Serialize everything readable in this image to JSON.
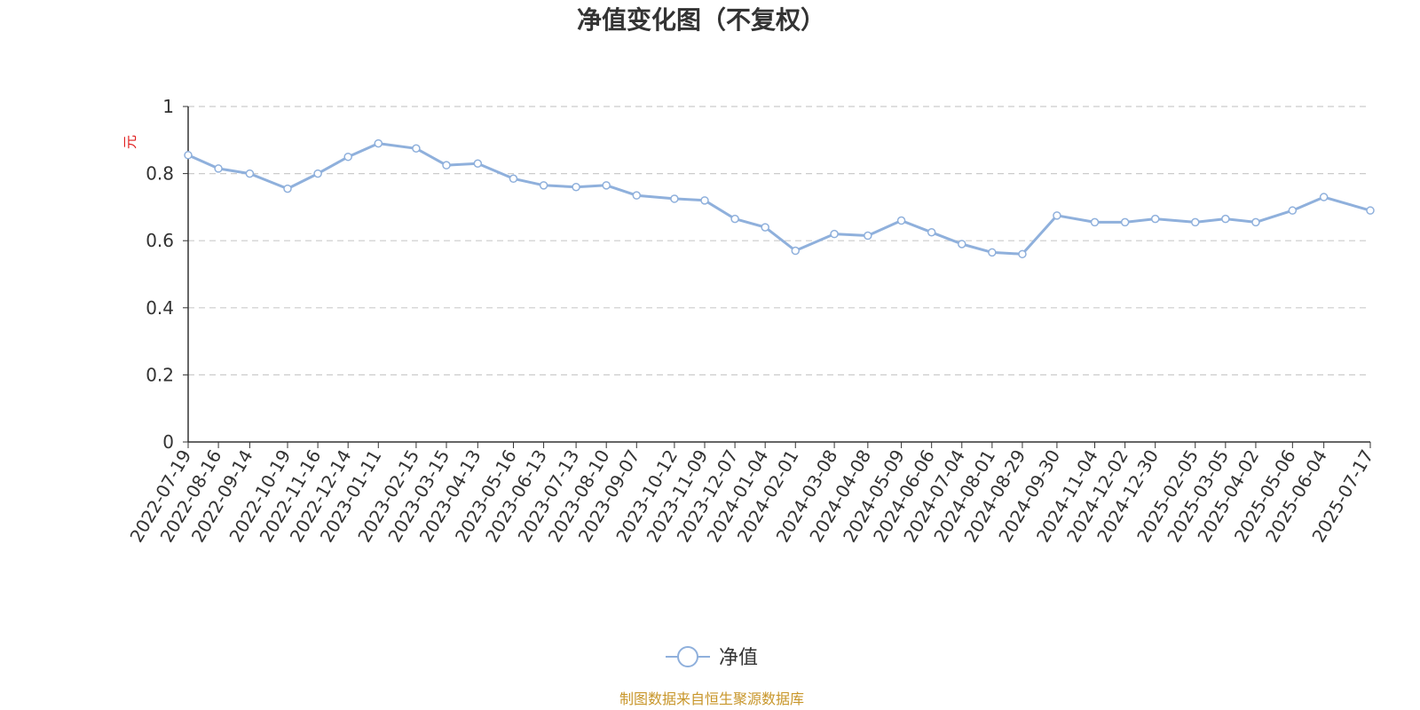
{
  "chart_data": {
    "type": "line",
    "title": "净值变化图（不复权）",
    "ylabel": "元",
    "ylim": [
      0,
      1
    ],
    "yticks": [
      "0",
      "0.2",
      "0.4",
      "0.6",
      "0.8",
      "1"
    ],
    "grid": true,
    "legend_position": "bottom",
    "series": [
      {
        "name": "净值",
        "color": "#8fb0dc",
        "x": [
          "2022-07-19",
          "2022-08-16",
          "2022-09-14",
          "2022-10-19",
          "2022-11-16",
          "2022-12-14",
          "2023-01-11",
          "2023-02-15",
          "2023-03-15",
          "2023-04-13",
          "2023-05-16",
          "2023-06-13",
          "2023-07-13",
          "2023-08-10",
          "2023-09-07",
          "2023-10-12",
          "2023-11-09",
          "2023-12-07",
          "2024-01-04",
          "2024-02-01",
          "2024-03-08",
          "2024-04-08",
          "2024-05-09",
          "2024-06-06",
          "2024-07-04",
          "2024-08-01",
          "2024-08-29",
          "2024-09-30",
          "2024-11-04",
          "2024-12-02",
          "2024-12-30",
          "2025-02-05",
          "2025-03-05",
          "2025-04-02",
          "2025-05-06",
          "2025-06-04",
          "2025-07-17"
        ],
        "values": [
          0.855,
          0.815,
          0.8,
          0.755,
          0.8,
          0.85,
          0.89,
          0.875,
          0.825,
          0.83,
          0.785,
          0.765,
          0.76,
          0.765,
          0.735,
          0.725,
          0.72,
          0.665,
          0.64,
          0.57,
          0.62,
          0.615,
          0.66,
          0.625,
          0.59,
          0.565,
          0.56,
          0.675,
          0.655,
          0.655,
          0.665,
          0.655,
          0.665,
          0.655,
          0.69,
          0.73,
          0.69
        ]
      }
    ]
  },
  "legend": {
    "label": "净值"
  },
  "source_note": "制图数据来自恒生聚源数据库"
}
